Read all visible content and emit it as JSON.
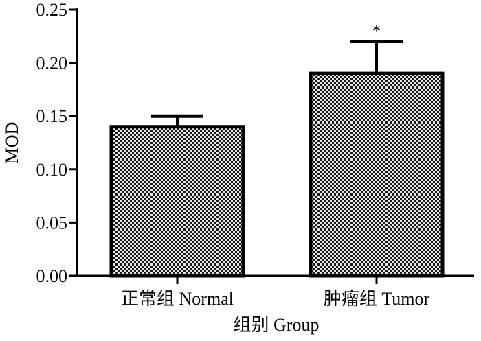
{
  "chart_data": {
    "type": "bar",
    "title": "",
    "xlabel": "组别 Group",
    "ylabel": "MOD",
    "categories": [
      "正常组 Normal",
      "肿瘤组 Tumor"
    ],
    "values": [
      0.14,
      0.19
    ],
    "error_upper": [
      0.15,
      0.22
    ],
    "annotations": [
      "",
      "*"
    ],
    "ylim": [
      0,
      0.25
    ],
    "yticks": [
      0.0,
      0.05,
      0.1,
      0.15,
      0.2,
      0.25
    ],
    "ytick_labels": [
      "0.00",
      "0.05",
      "0.10",
      "0.15",
      "0.20",
      "0.25"
    ],
    "grid": false,
    "bar_fill": "checkered gray",
    "colors": {
      "axis": "#000000",
      "bar_edge": "#000000",
      "pattern_dark": "#1a1a1a",
      "pattern_light": "#e6e6e6"
    }
  }
}
